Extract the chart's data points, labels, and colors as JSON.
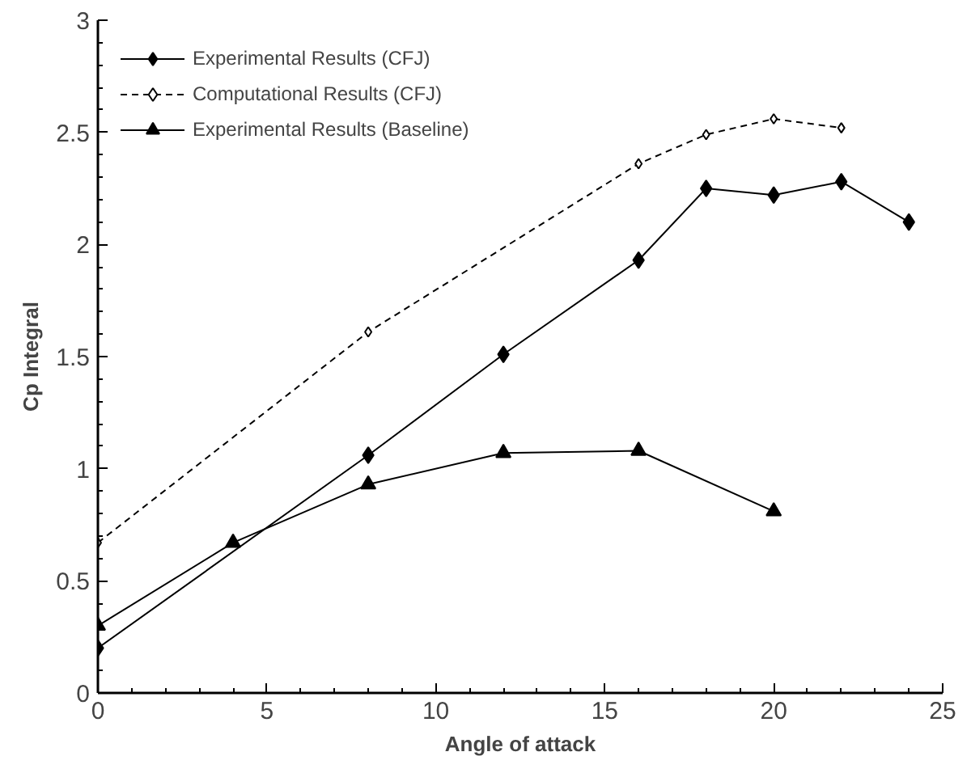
{
  "chart_data": {
    "type": "line",
    "xlabel": "Angle of attack",
    "ylabel": "Cp Integral",
    "xlim": [
      0,
      25
    ],
    "xticks": [
      0,
      5,
      10,
      15,
      20,
      25
    ],
    "ylim": [
      0,
      3
    ],
    "yticks": [
      0,
      0.5,
      1,
      1.5,
      2,
      2.5,
      3
    ],
    "grid": false,
    "legend": "top left",
    "series": [
      {
        "name": "Experimental Results (CFJ)",
        "color": "#000000",
        "marker": "diamond",
        "line_style": "solid",
        "x": [
          0,
          8,
          12,
          16,
          18,
          20,
          22,
          24
        ],
        "values": [
          0.2,
          1.06,
          1.51,
          1.93,
          2.25,
          2.22,
          2.28,
          2.1
        ]
      },
      {
        "name": "Computational Results (CFJ)",
        "color": "#000000",
        "marker": "diamond",
        "line_style": "dashed",
        "x": [
          0,
          8,
          16,
          18,
          20,
          22
        ],
        "values": [
          0.67,
          1.61,
          2.36,
          2.49,
          2.56,
          2.52
        ]
      },
      {
        "name": "Experimental Results (Baseline)",
        "color": "#000000",
        "marker": "triangle",
        "line_style": "solid",
        "x": [
          0,
          4,
          8,
          12,
          16,
          20
        ],
        "values": [
          0.3,
          0.67,
          0.93,
          1.07,
          1.08,
          0.81
        ]
      }
    ]
  }
}
